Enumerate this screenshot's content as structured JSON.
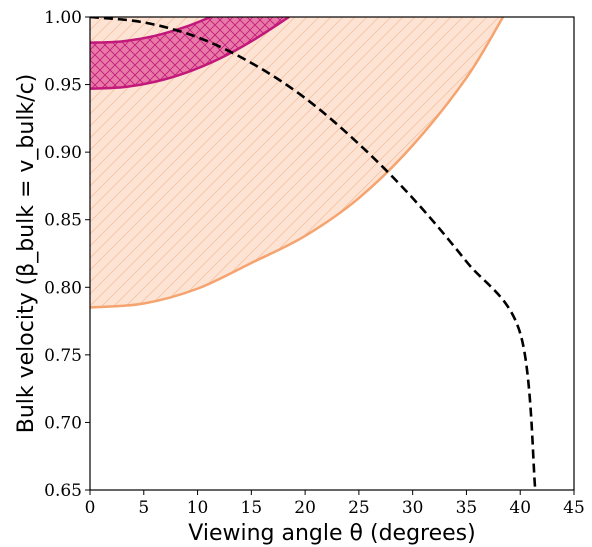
{
  "chart_data": {
    "type": "area",
    "xlabel": "Viewing angle θ (degrees)",
    "ylabel": "Bulk velocity (β_bulk = v_bulk/c)",
    "xlim": [
      0,
      45
    ],
    "ylim": [
      0.65,
      1.0
    ],
    "x_ticks": [
      "0",
      "5",
      "10",
      "15",
      "20",
      "25",
      "30",
      "35",
      "40",
      "45"
    ],
    "y_ticks": [
      "0.65",
      "0.70",
      "0.75",
      "0.80",
      "0.85",
      "0.90",
      "0.95",
      "1.00"
    ],
    "grid": false,
    "legend": "none",
    "series": [
      {
        "kind": "band",
        "color": "#f5a36f",
        "fill": "#fde3d4",
        "hatch": "diagonal",
        "lower": {
          "x": [
            0,
            5,
            10,
            15,
            20,
            25,
            30,
            35,
            38.4
          ],
          "y": [
            0.785,
            0.788,
            0.799,
            0.818,
            0.838,
            0.866,
            0.905,
            0.955,
            1.0
          ]
        },
        "upper_y": 1.0
      },
      {
        "kind": "band",
        "color": "#c2187a",
        "fill": "#e77aa6",
        "hatch": "cross",
        "lower": {
          "x": [
            0,
            3,
            6,
            9,
            12,
            15,
            18.5
          ],
          "y": [
            0.947,
            0.948,
            0.952,
            0.959,
            0.969,
            0.982,
            1.0
          ]
        },
        "upper": {
          "x": [
            0,
            3,
            6,
            9,
            11.2
          ],
          "y": [
            0.981,
            0.982,
            0.986,
            0.993,
            1.0
          ]
        }
      },
      {
        "kind": "line",
        "style": "dashed",
        "color": "#000000",
        "x": [
          0,
          5,
          10,
          15,
          20,
          25,
          30,
          35,
          40,
          41.4
        ],
        "y": [
          1.0,
          0.996,
          0.985,
          0.966,
          0.94,
          0.906,
          0.866,
          0.819,
          0.766,
          0.65
        ]
      }
    ]
  }
}
